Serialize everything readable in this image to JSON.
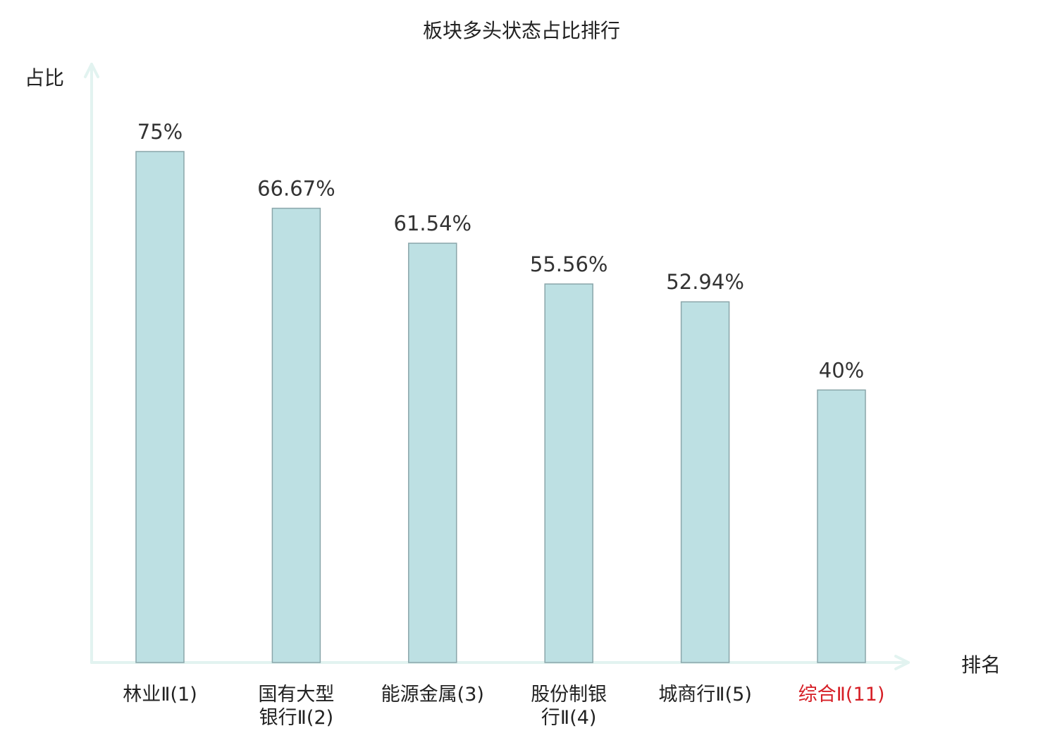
{
  "chart_data": {
    "type": "bar",
    "title": "板块多头状态占比排行",
    "ylabel": "占比",
    "xlabel": "排名",
    "categories": [
      [
        "林业Ⅱ(1)"
      ],
      [
        "国有大型",
        "银行Ⅱ(2)"
      ],
      [
        "能源金属(3)"
      ],
      [
        "股份制银",
        "行Ⅱ(4)"
      ],
      [
        "城商行Ⅱ(5)"
      ],
      [
        "综合Ⅱ(11)"
      ]
    ],
    "values": [
      75,
      66.67,
      61.54,
      55.56,
      52.94,
      40
    ],
    "value_labels": [
      "75%",
      "66.67%",
      "61.54%",
      "55.56%",
      "52.94%",
      "40%"
    ],
    "highlight_index": 5,
    "ylim": [
      0,
      84
    ],
    "grid": false,
    "legend": "none"
  },
  "colors": {
    "bar_fill": "#bde0e3",
    "bar_stroke": "#8aa6aa",
    "axis": "#e2f3f0",
    "highlight": "#d61f26"
  }
}
